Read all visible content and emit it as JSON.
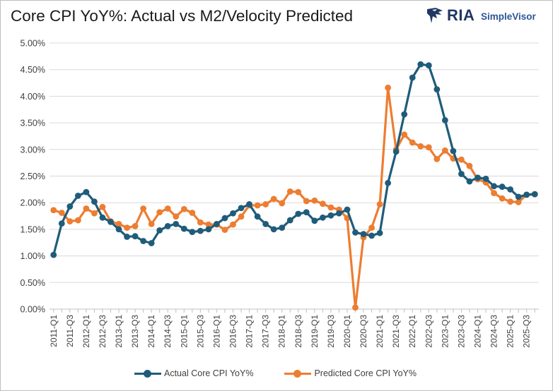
{
  "title": "Core CPI YoY%: Actual vs M2/Velocity Predicted",
  "logo": {
    "main": "RIA",
    "sub": "SimpleVisor",
    "icon": "eagle-icon",
    "color": "#1f3864"
  },
  "colors": {
    "actual": "#1f5c7a",
    "predicted": "#ed7d31",
    "grid": "#d9d9d9"
  },
  "chart_data": {
    "type": "line",
    "title": "Core CPI YoY%: Actual vs M2/Velocity Predicted",
    "ylim": [
      0,
      5
    ],
    "yticks": [
      "0.00%",
      "0.50%",
      "1.00%",
      "1.50%",
      "2.00%",
      "2.50%",
      "3.00%",
      "3.50%",
      "4.00%",
      "4.50%",
      "5.00%"
    ],
    "grid": true,
    "legend_position": "bottom",
    "x": [
      "2011-Q1",
      "2011-Q2",
      "2011-Q3",
      "2011-Q4",
      "2012-Q1",
      "2012-Q2",
      "2012-Q3",
      "2012-Q4",
      "2013-Q1",
      "2013-Q2",
      "2013-Q3",
      "2013-Q4",
      "2014-Q1",
      "2014-Q2",
      "2014-Q3",
      "2014-Q4",
      "2015-Q1",
      "2015-Q2",
      "2015-Q3",
      "2015-Q4",
      "2016-Q1",
      "2016-Q2",
      "2016-Q3",
      "2016-Q4",
      "2017-Q1",
      "2017-Q2",
      "2017-Q3",
      "2017-Q4",
      "2018-Q1",
      "2018-Q2",
      "2018-Q3",
      "2018-Q4",
      "2019-Q1",
      "2019-Q2",
      "2019-Q3",
      "2019-Q4",
      "2020-Q1",
      "2020-Q2",
      "2020-Q3",
      "2020-Q4",
      "2021-Q1",
      "2021-Q2",
      "2021-Q3",
      "2021-Q4",
      "2022-Q1",
      "2022-Q2",
      "2022-Q3",
      "2022-Q4",
      "2023-Q1",
      "2023-Q2",
      "2023-Q3",
      "2023-Q4",
      "2024-Q1",
      "2024-Q2",
      "2024-Q3",
      "2024-Q4",
      "2025-Q1",
      "2025-Q2",
      "2025-Q3",
      "2025-Q4"
    ],
    "xtick_labels": [
      "2011-Q1",
      "2011-Q3",
      "2012-Q1",
      "2012-Q3",
      "2013-Q1",
      "2013-Q3",
      "2014-Q1",
      "2014-Q3",
      "2015-Q1",
      "2015-Q3",
      "2016-Q1",
      "2016-Q3",
      "2017-Q1",
      "2017-Q3",
      "2018-Q1",
      "2018-Q3",
      "2019-Q1",
      "2019-Q3",
      "2020-Q1",
      "2020-Q3",
      "2021-Q1",
      "2021-Q3",
      "2022-Q1",
      "2022-Q3",
      "2023-Q1",
      "2023-Q3",
      "2024-Q1",
      "2024-Q3",
      "2025-Q1",
      "2025-Q3"
    ],
    "series": [
      {
        "name": "Actual Core CPI YoY%",
        "color": "#1f5c7a",
        "values": [
          1.02,
          1.61,
          1.93,
          2.13,
          2.2,
          2.02,
          1.72,
          1.64,
          1.5,
          1.36,
          1.37,
          1.28,
          1.24,
          1.48,
          1.56,
          1.6,
          1.51,
          1.45,
          1.47,
          1.5,
          1.6,
          1.71,
          1.8,
          1.9,
          1.97,
          1.74,
          1.6,
          1.5,
          1.53,
          1.67,
          1.79,
          1.82,
          1.66,
          1.72,
          1.76,
          1.8,
          1.87,
          1.44,
          1.41,
          1.38,
          1.43,
          2.37,
          2.96,
          3.66,
          4.35,
          4.6,
          4.58,
          4.13,
          3.55,
          2.97,
          2.54,
          2.4,
          2.47,
          2.45,
          2.31,
          2.3,
          2.25,
          2.11,
          2.15,
          2.16
        ]
      },
      {
        "name": "Predicted Core CPI YoY%",
        "color": "#ed7d31",
        "values": [
          1.86,
          1.81,
          1.65,
          1.67,
          1.89,
          1.8,
          1.92,
          1.65,
          1.6,
          1.53,
          1.56,
          1.89,
          1.6,
          1.82,
          1.89,
          1.74,
          1.88,
          1.81,
          1.63,
          1.59,
          1.59,
          1.49,
          1.59,
          1.74,
          1.95,
          1.95,
          1.97,
          2.07,
          1.99,
          2.21,
          2.2,
          2.03,
          2.04,
          1.98,
          1.91,
          1.87,
          1.71,
          0.03,
          1.35,
          1.53,
          1.97,
          4.16,
          3.0,
          3.28,
          3.13,
          3.06,
          3.04,
          2.82,
          2.98,
          2.83,
          2.81,
          2.69,
          2.44,
          2.38,
          2.18,
          2.08,
          2.02,
          2.01,
          2.15,
          2.16
        ]
      }
    ]
  }
}
